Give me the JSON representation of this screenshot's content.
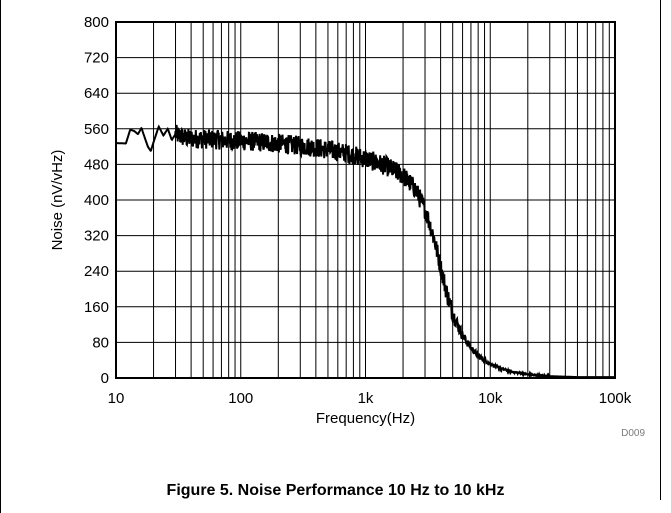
{
  "figure": {
    "caption": "Figure 5. Noise Performance 10 Hz to 10 kHz",
    "code": "D009"
  },
  "chart_data": {
    "type": "line",
    "title": "",
    "xlabel": "Frequency(Hz)",
    "ylabel": "Noise (nV/vHz)",
    "xscale": "log",
    "xlim": [
      10,
      100000
    ],
    "ylim": [
      0,
      800
    ],
    "grid": true,
    "xticks": [
      10,
      100,
      1000,
      10000,
      100000
    ],
    "xtick_labels": [
      "10",
      "100",
      "1k",
      "10k",
      "100k"
    ],
    "yticks": [
      0,
      80,
      160,
      240,
      320,
      400,
      480,
      560,
      640,
      720,
      800
    ],
    "ytick_labels": [
      "0",
      "80",
      "160",
      "240",
      "320",
      "400",
      "480",
      "560",
      "640",
      "720",
      "800"
    ],
    "series": [
      {
        "color": "#000000",
        "x": [
          10,
          12,
          13,
          14,
          15,
          16,
          17,
          18,
          19,
          20,
          22,
          24,
          26,
          28,
          30,
          35,
          40,
          50,
          60,
          70,
          80,
          100,
          150,
          200,
          300,
          400,
          500,
          700,
          1000,
          1500,
          2000,
          2500,
          3000,
          3500,
          4000,
          4500,
          5000,
          6000,
          7000,
          8000,
          10000,
          12000,
          15000,
          20000,
          25000,
          30000,
          40000,
          50000,
          100000
        ],
        "y": [
          528,
          527,
          558,
          555,
          548,
          562,
          540,
          520,
          510,
          530,
          565,
          545,
          560,
          535,
          548,
          540,
          538,
          537,
          536,
          535,
          534,
          533,
          530,
          527,
          522,
          518,
          513,
          505,
          493,
          475,
          455,
          425,
          380,
          320,
          250,
          190,
          145,
          95,
          68,
          50,
          32,
          22,
          14,
          8,
          5,
          4,
          3,
          2,
          2
        ]
      }
    ]
  }
}
